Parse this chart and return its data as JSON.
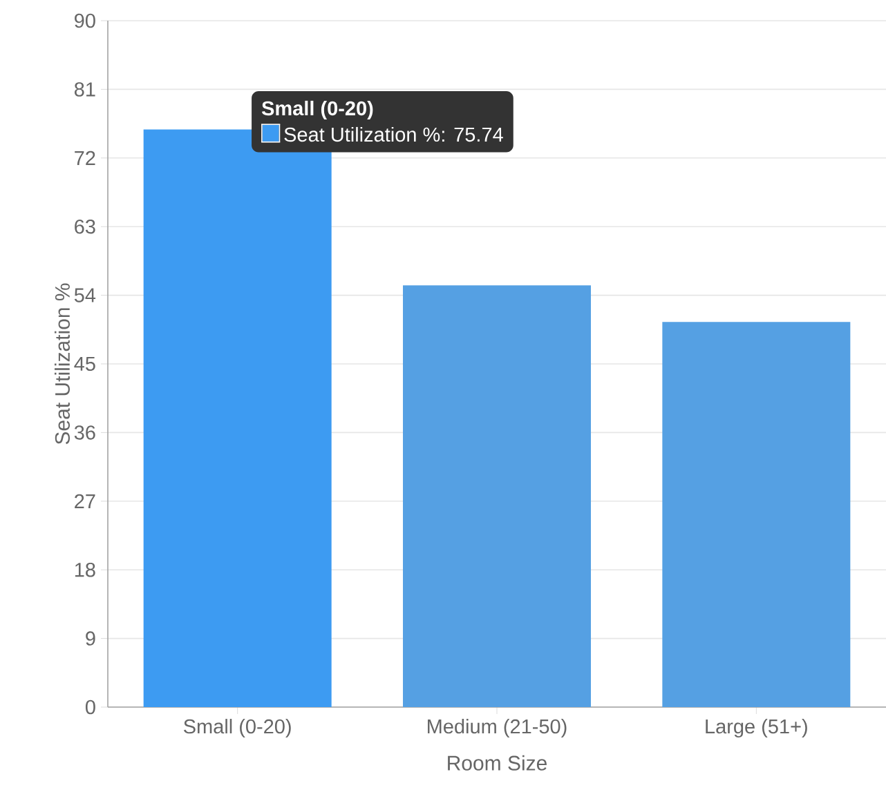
{
  "chart_data": {
    "type": "bar",
    "xlabel": "Room Size",
    "ylabel": "Seat Utilization %",
    "categories": [
      "Small (0-20)",
      "Medium (21-50)",
      "Large (51+)"
    ],
    "values": [
      75.74,
      55.3,
      50.5
    ],
    "colors": [
      "#3d9bf2",
      "#55a0e3",
      "#55a0e3"
    ],
    "ylim": [
      0,
      90
    ],
    "yticks": [
      0,
      9,
      18,
      27,
      36,
      45,
      54,
      63,
      72,
      81,
      90
    ],
    "grid": "y",
    "annotations": [
      "**Small (0-20)**",
      "Seat Utilization %: 75.74"
    ]
  }
}
